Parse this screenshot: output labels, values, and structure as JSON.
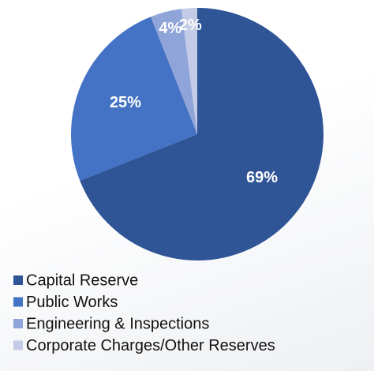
{
  "chart_data": {
    "type": "pie",
    "categories": [
      "Capital Reserve",
      "Public Works",
      "Engineering & Inspections",
      "Corporate Charges/Other Reserves"
    ],
    "values": [
      69,
      25,
      4,
      2
    ],
    "value_labels": [
      "69%",
      "25%",
      "4%",
      "2%"
    ],
    "colors": [
      "#2f5597",
      "#4472c4",
      "#8fa4d8",
      "#c3cbe6"
    ],
    "legend": "bottom"
  }
}
